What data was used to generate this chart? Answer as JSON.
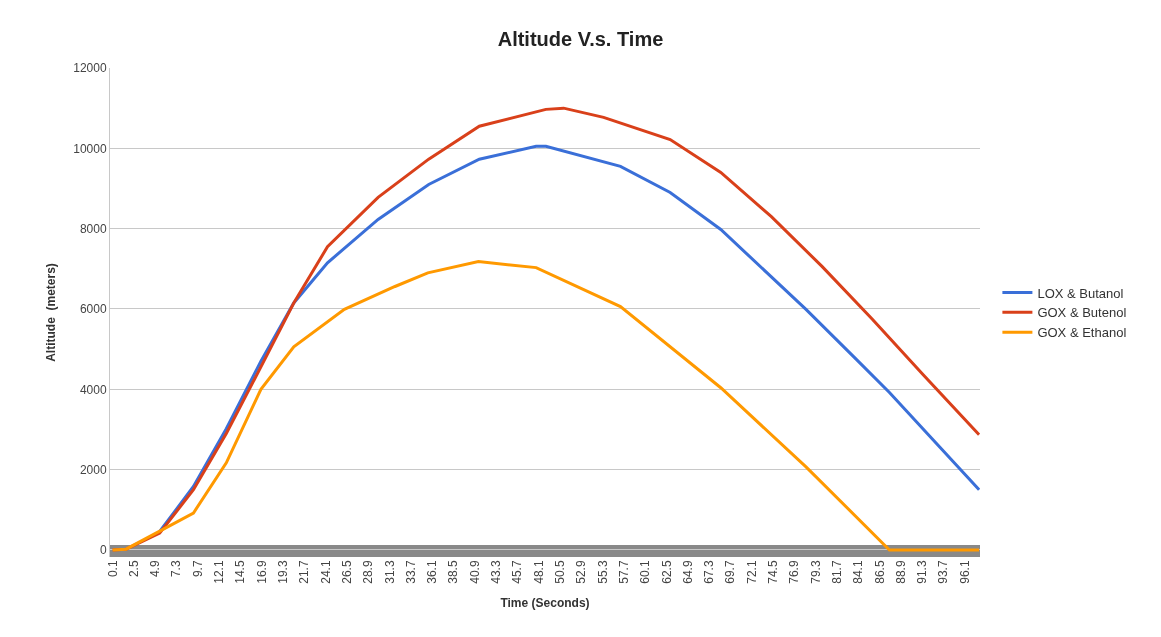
{
  "chart_data": {
    "type": "line",
    "title": "Altitude V.s. Time",
    "xlabel": "Time (Seconds)",
    "ylabel": "Altitude  (meters)",
    "xlim": [
      -0.2,
      97.8
    ],
    "xticks": [
      0.1,
      2.5,
      4.9,
      7.3,
      9.7,
      12.1,
      14.5,
      16.9,
      19.3,
      21.7,
      24.1,
      26.5,
      28.9,
      31.3,
      33.7,
      36.1,
      38.5,
      40.9,
      43.3,
      45.7,
      48.1,
      50.5,
      52.9,
      55.3,
      57.7,
      60.1,
      62.5,
      64.9,
      67.3,
      69.7,
      72.1,
      74.5,
      76.9,
      79.3,
      81.7,
      84.1,
      86.5,
      88.9,
      91.3,
      93.7,
      96.1
    ],
    "ylim": [
      -175,
      12000
    ],
    "yticks": [
      0,
      2000,
      4000,
      6000,
      8000,
      10000,
      12000
    ],
    "grid": "y",
    "legend": "right",
    "marker": "none",
    "line_style": "solid",
    "bands": [
      {
        "axis": "y",
        "from": -175,
        "to": 125,
        "color": "#898989"
      }
    ],
    "series": [
      {
        "name": "LOX & Butanol",
        "color": "#3a6fd8",
        "x": [
          5.4,
          9.2,
          12.9,
          16.8,
          20.5,
          24.3,
          30.0,
          35.7,
          41.4,
          47.8,
          48.9,
          57.3,
          62.9,
          68.6,
          78.2,
          83.9,
          87.6,
          97.7
        ],
        "values": [
          460,
          1580,
          3020,
          4700,
          6150,
          7150,
          8230,
          9100,
          9730,
          10050,
          10050,
          9550,
          8900,
          7980,
          5990,
          4740,
          3920,
          1500
        ]
      },
      {
        "name": "GOX & Butenol",
        "color": "#d9401a",
        "x": [
          0.1,
          1.6,
          5.4,
          9.2,
          12.9,
          16.8,
          20.5,
          24.3,
          30.0,
          35.7,
          41.4,
          48.9,
          50.9,
          55.4,
          62.9,
          68.6,
          74.3,
          80.0,
          85.7,
          91.4,
          97.7
        ],
        "values": [
          0,
          20,
          420,
          1500,
          2900,
          4560,
          6150,
          7550,
          8780,
          9730,
          10550,
          10970,
          11000,
          10770,
          10220,
          9400,
          8300,
          7060,
          5740,
          4360,
          2870
        ]
      },
      {
        "name": "GOX & Ethanol",
        "color": "#ff9900",
        "x": [
          0.1,
          1.6,
          9.2,
          12.9,
          16.8,
          20.5,
          26.2,
          31.9,
          35.6,
          41.3,
          47.8,
          57.3,
          68.6,
          78.2,
          87.6,
          97.7
        ],
        "values": [
          0,
          20,
          920,
          2170,
          4000,
          5060,
          5990,
          6560,
          6900,
          7180,
          7030,
          6060,
          4040,
          2070,
          0,
          0
        ]
      }
    ]
  }
}
